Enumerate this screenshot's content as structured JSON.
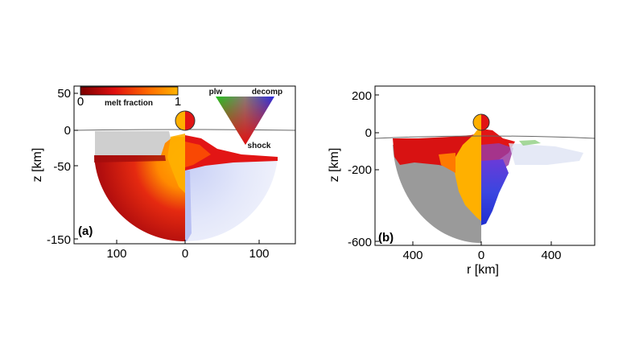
{
  "panel_a": {
    "label": "(a)",
    "y_axis_label": "z [km]",
    "y_ticks": [
      "50",
      "0",
      "-50",
      "-150"
    ],
    "x_ticks": [
      "100",
      "0",
      "100"
    ]
  },
  "panel_b": {
    "label": "(b)",
    "y_axis_label": "z [km]",
    "x_axis_label": "r [km]",
    "y_ticks": [
      "200",
      "0",
      "-200",
      "-600"
    ],
    "x_ticks": [
      "400",
      "0",
      "400"
    ]
  },
  "colorbar": {
    "title": "melt fraction",
    "min_label": "0",
    "max_label": "1",
    "colors": [
      "#7a0000",
      "#e01010",
      "#ff6a00",
      "#ffb400"
    ]
  },
  "ternary_key": {
    "labels": {
      "plw": "plw",
      "decomp": "decomp",
      "shock": "shock"
    },
    "colors": {
      "plw": "#22c21c",
      "decomp": "#2a2ae0",
      "shock": "#e01010"
    }
  },
  "colors": {
    "melt_dark": "#8a0b0b",
    "melt_red": "#e21515",
    "melt_yellow": "#ffb000",
    "solid_gray": "#9a9a9a",
    "light_gray": "#cfcfcf"
  }
}
